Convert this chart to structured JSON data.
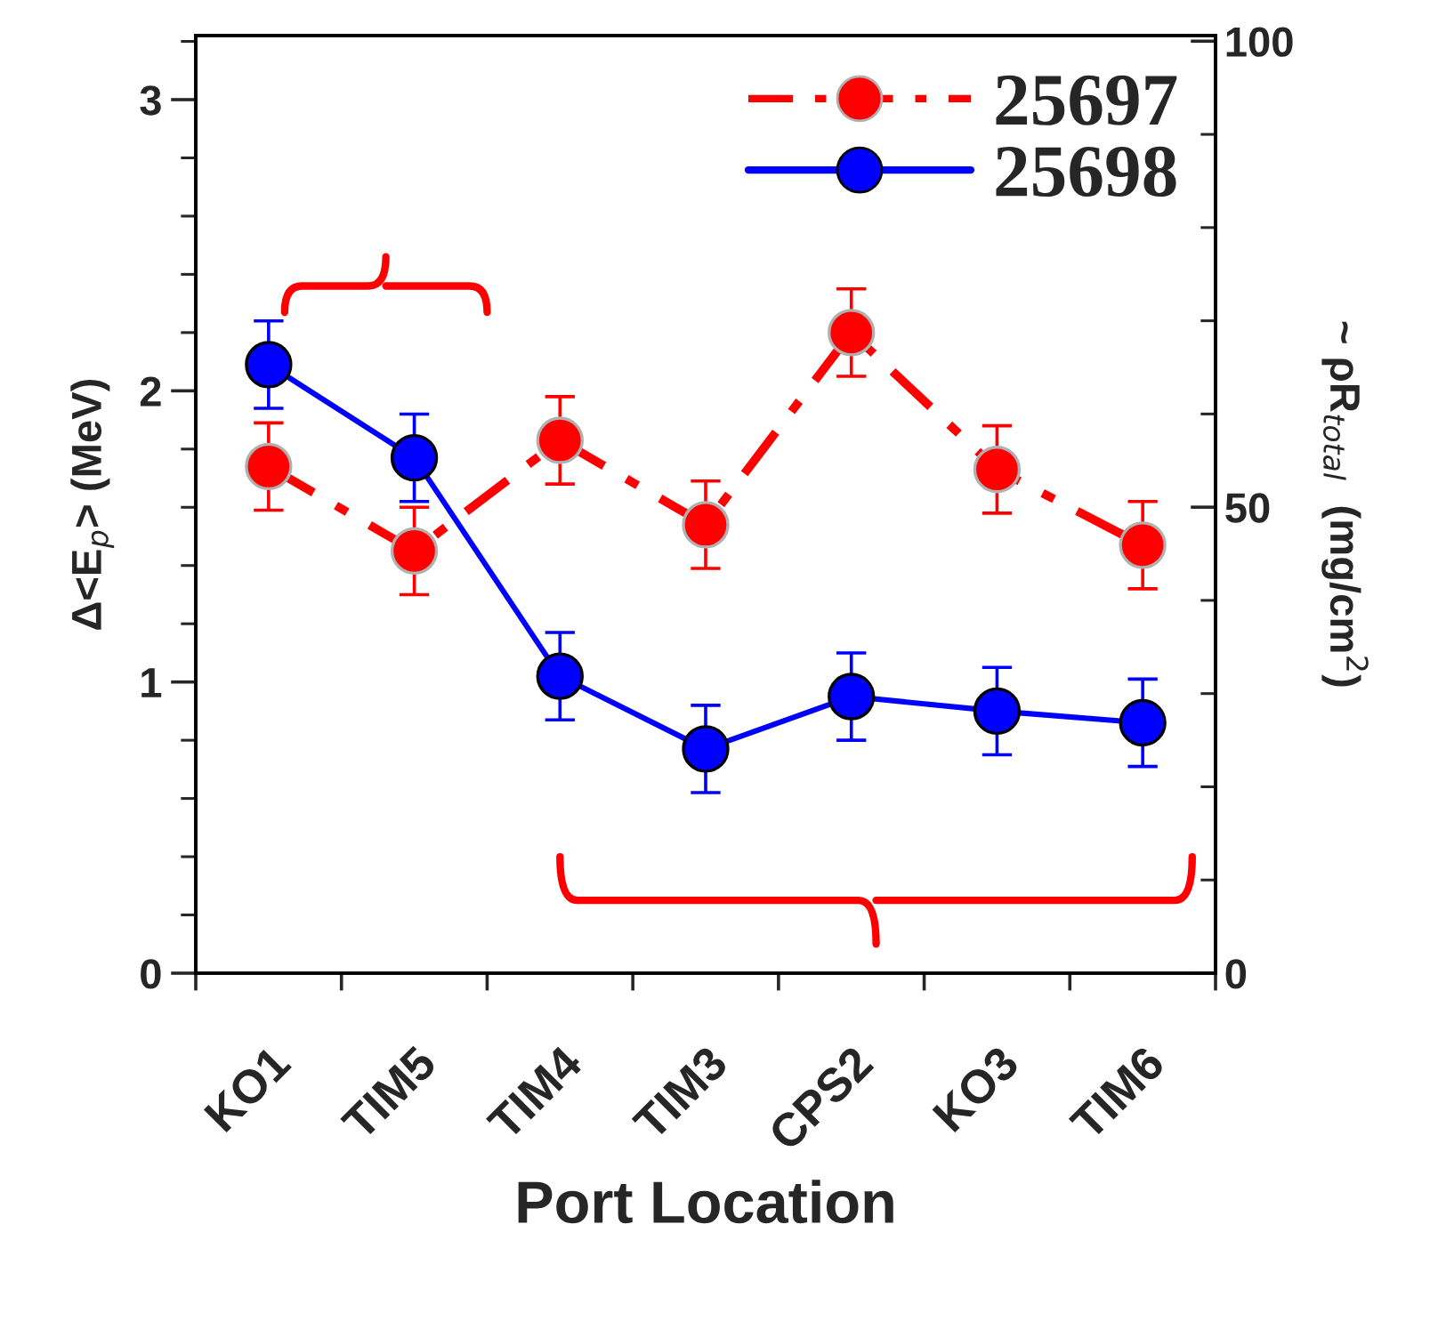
{
  "chart_data": {
    "type": "line",
    "xlabel": "Port Location",
    "ylabel": "Δ<E$_{p}$> (MeV)",
    "y2label": "~ ρR$_{total}$  (mg/cm$^{2}$)",
    "categories": [
      "KO1",
      "TIM5",
      "TIM4",
      "TIM3",
      "CPS2",
      "KO3",
      "TIM6"
    ],
    "series": [
      {
        "name": "25697",
        "color": "#ff0000",
        "line_style": "dashed",
        "values": [
          1.74,
          1.45,
          1.83,
          1.54,
          2.2,
          1.73,
          1.47
        ],
        "errors": [
          0.15,
          0.15,
          0.15,
          0.15,
          0.15,
          0.15,
          0.15
        ]
      },
      {
        "name": "25698",
        "color": "#0000ff",
        "line_style": "solid",
        "values": [
          2.09,
          1.77,
          1.02,
          0.77,
          0.95,
          0.9,
          0.86
        ],
        "errors": [
          0.15,
          0.15,
          0.15,
          0.15,
          0.15,
          0.15,
          0.15
        ]
      }
    ],
    "ylim": [
      0,
      3.22
    ],
    "yticks": [
      0,
      1,
      2,
      3
    ],
    "y2lim": [
      0,
      100.6
    ],
    "y2ticks": [
      0,
      50,
      100
    ],
    "marker": "circle",
    "legend": "top right",
    "grid": false
  }
}
